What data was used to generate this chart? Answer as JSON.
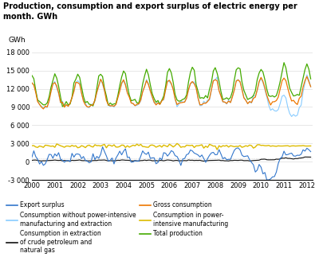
{
  "title": "Production, consumption and export surplus of electric energy per\nmonth. GWh",
  "ylabel": "GWh",
  "ylim": [
    -3000,
    19000
  ],
  "yticks": [
    -3000,
    0,
    3000,
    6000,
    9000,
    12000,
    15000,
    18000
  ],
  "ytick_labels": [
    "-3 000",
    "0",
    "3 000",
    "6 000",
    "9 000",
    "12 000",
    "15 000",
    "18 000"
  ],
  "xlim_start": 2000.0,
  "xlim_end": 2012.25,
  "xticks": [
    2000,
    2001,
    2002,
    2003,
    2004,
    2005,
    2006,
    2007,
    2008,
    2009,
    2010,
    2011,
    2012
  ],
  "colors": {
    "export_surplus": "#3377CC",
    "crude_petroleum": "#111111",
    "power_intensive": "#DDBB00",
    "consumption_without": "#88CCFF",
    "gross_consumption": "#EE7700",
    "total_production": "#44AA00"
  },
  "hline_color": "#CCCCCC",
  "grid_color": "#DDDDDD",
  "figsize": [
    4.0,
    3.23
  ],
  "dpi": 100
}
